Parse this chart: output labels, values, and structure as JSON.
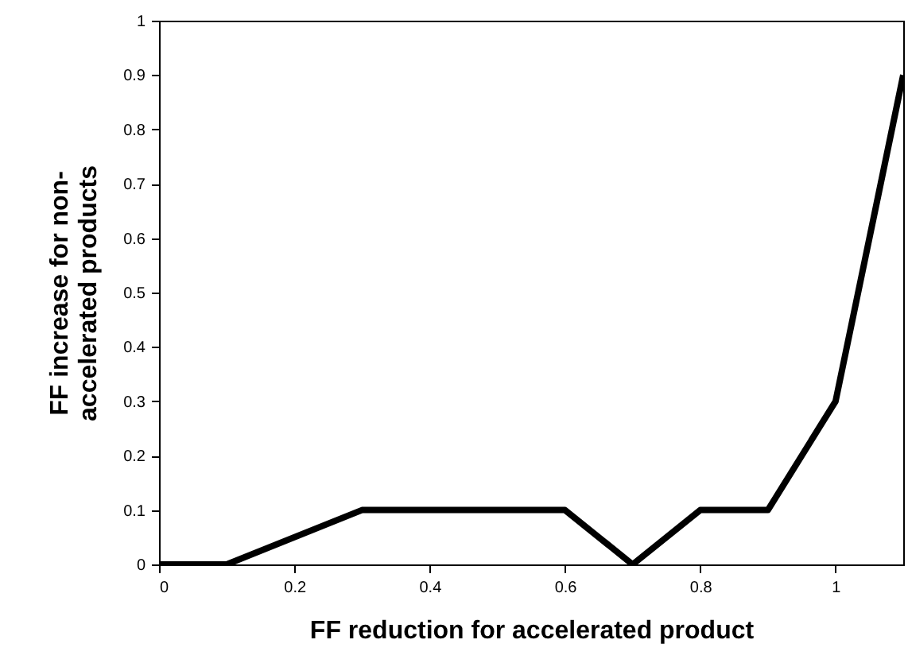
{
  "chart_data": {
    "type": "line",
    "xlabel": "FF reduction for accelerated product",
    "ylabel": "FF increase for non-accelerated products",
    "x": [
      0,
      0.1,
      0.3,
      0.6,
      0.7,
      0.8,
      0.9,
      1.0,
      1.1
    ],
    "series": [
      {
        "color": "#000000",
        "values": [
          0,
          0,
          0.1,
          0.1,
          0,
          0.1,
          0.1,
          0.3,
          0.9
        ]
      }
    ],
    "xlim": [
      0,
      1.1
    ],
    "xticks": [
      0,
      0.2,
      0.4,
      0.6,
      0.8,
      1
    ],
    "ylim": [
      0,
      1
    ],
    "yticks": [
      0,
      0.1,
      0.2,
      0.3,
      0.4,
      0.5,
      0.6,
      0.7,
      0.8,
      0.9,
      1
    ],
    "grid": false,
    "marker": "none",
    "line_style": "solid"
  }
}
